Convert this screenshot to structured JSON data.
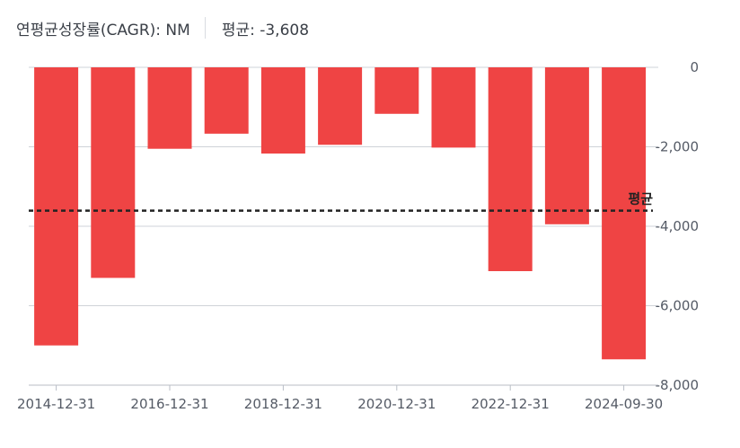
{
  "header": {
    "cagr_text": "연평균성장률(CAGR): NM",
    "average_text": "평균: -3,608"
  },
  "colors": {
    "bar": "#ef4444",
    "grid": "#cfd3d8",
    "average_line": "#222222",
    "axis_text": "#555b66"
  },
  "chart_data": {
    "type": "bar",
    "categories": [
      "2014-12-31",
      "2015-12-31",
      "2016-12-31",
      "2017-12-31",
      "2018-12-31",
      "2019-12-31",
      "2020-12-31",
      "2021-12-31",
      "2022-12-31",
      "2023-12-31",
      "2024-09-30"
    ],
    "x_tick_labels": [
      "2014-12-31",
      "2016-12-31",
      "2018-12-31",
      "2020-12-31",
      "2022-12-31",
      "2024-09-30"
    ],
    "values": [
      -7000,
      -5300,
      -2050,
      -1670,
      -2170,
      -1950,
      -1170,
      -2020,
      -5130,
      -3950,
      -7350
    ],
    "y_ticks": [
      0,
      -2000,
      -4000,
      -6000,
      -8000
    ],
    "y_tick_labels": [
      "0",
      "-2,000",
      "-4,000",
      "-6,000",
      "-8,000"
    ],
    "ylim": [
      -8000,
      0
    ],
    "average": -3608,
    "average_label": "평균",
    "title": "",
    "xlabel": "",
    "ylabel": "",
    "grid": true,
    "y_axis_side": "right"
  }
}
